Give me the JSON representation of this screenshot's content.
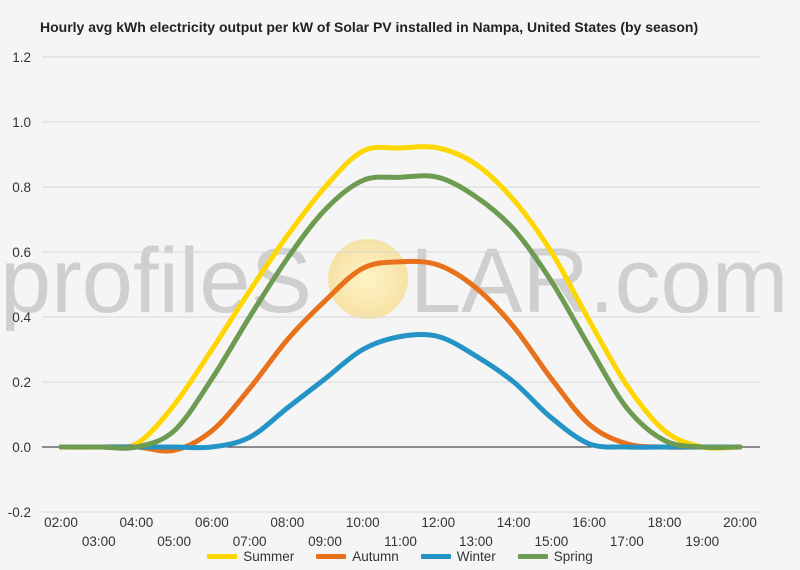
{
  "chart_data": {
    "type": "line",
    "title": "Hourly avg kWh electricity output per kW of Solar PV installed in Nampa, United States (by season)",
    "xlabel": "",
    "ylabel": "",
    "ylim": [
      -0.2,
      1.2
    ],
    "yticks": [
      "-0.2",
      "0.0",
      "0.2",
      "0.4",
      "0.6",
      "0.8",
      "1.0",
      "1.2"
    ],
    "grid": true,
    "legend_position": "bottom",
    "categories": [
      "02:00",
      "03:00",
      "04:00",
      "05:00",
      "06:00",
      "07:00",
      "08:00",
      "09:00",
      "10:00",
      "11:00",
      "12:00",
      "13:00",
      "14:00",
      "15:00",
      "16:00",
      "17:00",
      "18:00",
      "19:00",
      "20:00"
    ],
    "series": [
      {
        "name": "Summer",
        "color": "#ffd700",
        "values": [
          0.0,
          0.0,
          0.01,
          0.13,
          0.3,
          0.48,
          0.65,
          0.8,
          0.91,
          0.92,
          0.92,
          0.87,
          0.76,
          0.6,
          0.39,
          0.19,
          0.05,
          0.0,
          0.0
        ]
      },
      {
        "name": "Autumn",
        "color": "#e8711c",
        "values": [
          0.0,
          0.0,
          0.0,
          -0.01,
          0.05,
          0.18,
          0.33,
          0.45,
          0.55,
          0.57,
          0.56,
          0.49,
          0.37,
          0.21,
          0.07,
          0.01,
          0.0,
          0.0,
          0.0
        ]
      },
      {
        "name": "Winter",
        "color": "#2493c5",
        "values": [
          0.0,
          0.0,
          0.0,
          0.0,
          0.0,
          0.03,
          0.12,
          0.21,
          0.3,
          0.34,
          0.34,
          0.28,
          0.2,
          0.09,
          0.01,
          0.0,
          0.0,
          0.0,
          0.0
        ]
      },
      {
        "name": "Spring",
        "color": "#6e9b52",
        "values": [
          0.0,
          0.0,
          0.0,
          0.05,
          0.21,
          0.4,
          0.58,
          0.73,
          0.82,
          0.83,
          0.83,
          0.77,
          0.67,
          0.51,
          0.31,
          0.12,
          0.02,
          0.0,
          0.0
        ]
      }
    ]
  },
  "watermark": {
    "text": "profileSOLAR.com",
    "lead": "profileS",
    "tail": "LAR.com"
  }
}
